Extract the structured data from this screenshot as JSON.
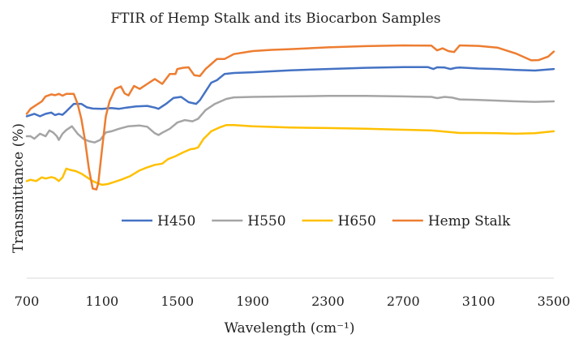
{
  "chart_data": {
    "type": "line",
    "title": "FTIR of Hemp Stalk and its Biocarbon Samples",
    "xlabel": "Wavelength (cm⁻¹)",
    "ylabel": "Transmittance (%)",
    "xlim": [
      700,
      3500
    ],
    "ylim": [
      0,
      100
    ],
    "x_ticks": [
      "700",
      "1100",
      "1500",
      "1900",
      "2300",
      "2700",
      "3100",
      "3500"
    ],
    "y_ticks_shown": false,
    "grid": false,
    "legend_position": "middle",
    "series": [
      {
        "name": "H450",
        "color": "#4472C4",
        "points": [
          [
            700,
            65
          ],
          [
            740,
            66
          ],
          [
            770,
            65
          ],
          [
            800,
            66
          ],
          [
            830,
            66.5
          ],
          [
            850,
            65.5
          ],
          [
            870,
            66
          ],
          [
            890,
            65.6
          ],
          [
            910,
            67
          ],
          [
            950,
            70
          ],
          [
            990,
            70
          ],
          [
            1020,
            68.6
          ],
          [
            1050,
            68.1
          ],
          [
            1100,
            68
          ],
          [
            1150,
            68.3
          ],
          [
            1190,
            68
          ],
          [
            1230,
            68.5
          ],
          [
            1280,
            69
          ],
          [
            1340,
            69.2
          ],
          [
            1380,
            68.5
          ],
          [
            1400,
            68
          ],
          [
            1440,
            70
          ],
          [
            1480,
            72.4
          ],
          [
            1520,
            72.8
          ],
          [
            1560,
            70.7
          ],
          [
            1600,
            70
          ],
          [
            1620,
            71.5
          ],
          [
            1650,
            75
          ],
          [
            1680,
            78.5
          ],
          [
            1710,
            79.5
          ],
          [
            1750,
            82
          ],
          [
            1800,
            82.4
          ],
          [
            1900,
            82.7
          ],
          [
            2100,
            83.5
          ],
          [
            2300,
            84
          ],
          [
            2500,
            84.5
          ],
          [
            2700,
            84.8
          ],
          [
            2830,
            84.8
          ],
          [
            2860,
            84
          ],
          [
            2880,
            84.7
          ],
          [
            2920,
            84.6
          ],
          [
            2950,
            84
          ],
          [
            2980,
            84.5
          ],
          [
            3000,
            84.6
          ],
          [
            3100,
            84.2
          ],
          [
            3200,
            84
          ],
          [
            3300,
            83.6
          ],
          [
            3400,
            83.4
          ],
          [
            3500,
            84
          ]
        ]
      },
      {
        "name": "H550",
        "color": "#A5A5A5",
        "points": [
          [
            700,
            57
          ],
          [
            720,
            57
          ],
          [
            740,
            56
          ],
          [
            770,
            58
          ],
          [
            800,
            57
          ],
          [
            820,
            59.3
          ],
          [
            840,
            58.5
          ],
          [
            860,
            57
          ],
          [
            870,
            55.5
          ],
          [
            890,
            58
          ],
          [
            910,
            59.5
          ],
          [
            940,
            61
          ],
          [
            970,
            58
          ],
          [
            1000,
            56
          ],
          [
            1030,
            55
          ],
          [
            1060,
            54.5
          ],
          [
            1090,
            55.5
          ],
          [
            1120,
            58.5
          ],
          [
            1150,
            59
          ],
          [
            1190,
            60
          ],
          [
            1240,
            61
          ],
          [
            1300,
            61.3
          ],
          [
            1340,
            60.8
          ],
          [
            1380,
            58.2
          ],
          [
            1400,
            57.5
          ],
          [
            1420,
            58.4
          ],
          [
            1460,
            60
          ],
          [
            1500,
            62.5
          ],
          [
            1540,
            63.5
          ],
          [
            1580,
            63
          ],
          [
            1610,
            64
          ],
          [
            1650,
            67.5
          ],
          [
            1700,
            70
          ],
          [
            1760,
            72
          ],
          [
            1800,
            72.6
          ],
          [
            1900,
            72.8
          ],
          [
            2100,
            73
          ],
          [
            2300,
            73.2
          ],
          [
            2500,
            73.2
          ],
          [
            2700,
            73
          ],
          [
            2850,
            72.8
          ],
          [
            2880,
            72.3
          ],
          [
            2920,
            72.8
          ],
          [
            2960,
            72.5
          ],
          [
            3000,
            71.8
          ],
          [
            3100,
            71.6
          ],
          [
            3200,
            71.3
          ],
          [
            3300,
            71
          ],
          [
            3400,
            70.8
          ],
          [
            3500,
            71
          ]
        ]
      },
      {
        "name": "H650",
        "color": "#FFC000",
        "points": [
          [
            700,
            39
          ],
          [
            720,
            39.5
          ],
          [
            750,
            39
          ],
          [
            780,
            40.5
          ],
          [
            800,
            40
          ],
          [
            830,
            40.6
          ],
          [
            850,
            40.2
          ],
          [
            870,
            39
          ],
          [
            890,
            40.5
          ],
          [
            910,
            44
          ],
          [
            930,
            43.5
          ],
          [
            960,
            43
          ],
          [
            990,
            42
          ],
          [
            1020,
            40.5
          ],
          [
            1050,
            39
          ],
          [
            1080,
            38
          ],
          [
            1100,
            37.5
          ],
          [
            1130,
            37.8
          ],
          [
            1160,
            38.5
          ],
          [
            1200,
            39.5
          ],
          [
            1250,
            41
          ],
          [
            1300,
            43.3
          ],
          [
            1340,
            44.5
          ],
          [
            1380,
            45.5
          ],
          [
            1420,
            46
          ],
          [
            1450,
            47.8
          ],
          [
            1490,
            49
          ],
          [
            1530,
            50.5
          ],
          [
            1570,
            51.8
          ],
          [
            1590,
            52
          ],
          [
            1610,
            52.5
          ],
          [
            1640,
            56
          ],
          [
            1680,
            59
          ],
          [
            1720,
            60.4
          ],
          [
            1760,
            61.5
          ],
          [
            1800,
            61.5
          ],
          [
            1900,
            61
          ],
          [
            2100,
            60.5
          ],
          [
            2300,
            60.3
          ],
          [
            2500,
            60
          ],
          [
            2700,
            59.6
          ],
          [
            2850,
            59.3
          ],
          [
            2900,
            59
          ],
          [
            2960,
            58.6
          ],
          [
            3000,
            58.3
          ],
          [
            3100,
            58.3
          ],
          [
            3200,
            58.2
          ],
          [
            3300,
            58
          ],
          [
            3400,
            58.2
          ],
          [
            3500,
            59
          ]
        ]
      },
      {
        "name": "Hemp Stalk",
        "color": "#ED7D31",
        "points": [
          [
            700,
            66
          ],
          [
            720,
            68
          ],
          [
            750,
            69.5
          ],
          [
            780,
            71
          ],
          [
            800,
            73
          ],
          [
            830,
            73.8
          ],
          [
            850,
            73.5
          ],
          [
            870,
            74
          ],
          [
            890,
            73.3
          ],
          [
            910,
            74
          ],
          [
            950,
            74
          ],
          [
            970,
            70
          ],
          [
            990,
            64
          ],
          [
            1010,
            55
          ],
          [
            1030,
            44
          ],
          [
            1050,
            36
          ],
          [
            1070,
            35.6
          ],
          [
            1080,
            38
          ],
          [
            1100,
            52
          ],
          [
            1120,
            65
          ],
          [
            1140,
            71
          ],
          [
            1170,
            76
          ],
          [
            1200,
            77
          ],
          [
            1220,
            74.2
          ],
          [
            1240,
            73.4
          ],
          [
            1270,
            77.2
          ],
          [
            1300,
            76
          ],
          [
            1340,
            78
          ],
          [
            1380,
            80
          ],
          [
            1420,
            78
          ],
          [
            1460,
            82
          ],
          [
            1490,
            82
          ],
          [
            1500,
            84
          ],
          [
            1530,
            84.5
          ],
          [
            1560,
            84.7
          ],
          [
            1590,
            81.5
          ],
          [
            1620,
            81.2
          ],
          [
            1650,
            84
          ],
          [
            1680,
            86
          ],
          [
            1710,
            88
          ],
          [
            1750,
            88
          ],
          [
            1800,
            90
          ],
          [
            1900,
            91.2
          ],
          [
            2000,
            91.7
          ],
          [
            2100,
            92
          ],
          [
            2300,
            92.7
          ],
          [
            2500,
            93.2
          ],
          [
            2700,
            93.5
          ],
          [
            2850,
            93.4
          ],
          [
            2880,
            91.5
          ],
          [
            2910,
            92.3
          ],
          [
            2940,
            91.2
          ],
          [
            2970,
            90.8
          ],
          [
            3000,
            93.5
          ],
          [
            3100,
            93.3
          ],
          [
            3200,
            92.6
          ],
          [
            3300,
            90.2
          ],
          [
            3380,
            87.5
          ],
          [
            3420,
            87.6
          ],
          [
            3470,
            89
          ],
          [
            3500,
            91
          ]
        ]
      }
    ]
  }
}
